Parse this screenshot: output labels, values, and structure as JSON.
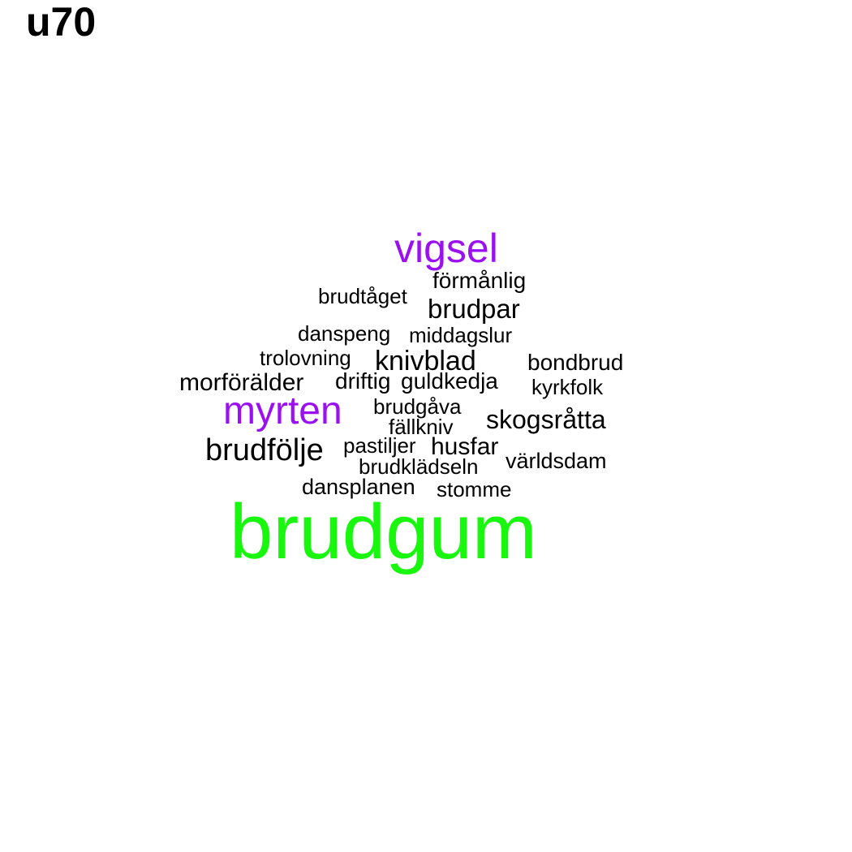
{
  "title": "u70",
  "colors": {
    "accent_purple": "#9b10f0",
    "accent_green": "#1af70f",
    "default": "#000000"
  },
  "words": [
    {
      "text": "vigsel"
    },
    {
      "text": "förmånlig"
    },
    {
      "text": "brudtåget"
    },
    {
      "text": "brudpar"
    },
    {
      "text": "danspeng"
    },
    {
      "text": "middagslur"
    },
    {
      "text": "trolovning"
    },
    {
      "text": "knivblad"
    },
    {
      "text": "bondbrud"
    },
    {
      "text": "morförälder"
    },
    {
      "text": "driftig"
    },
    {
      "text": "guldkedja"
    },
    {
      "text": "kyrkfolk"
    },
    {
      "text": "myrten"
    },
    {
      "text": "brudgåva"
    },
    {
      "text": "skogsråtta"
    },
    {
      "text": "fällkniv"
    },
    {
      "text": "brudfölje"
    },
    {
      "text": "pastiljer"
    },
    {
      "text": "husfar"
    },
    {
      "text": "världsdam"
    },
    {
      "text": "brudklädseln"
    },
    {
      "text": "dansplanen"
    },
    {
      "text": "stomme"
    },
    {
      "text": "brudgum"
    }
  ]
}
